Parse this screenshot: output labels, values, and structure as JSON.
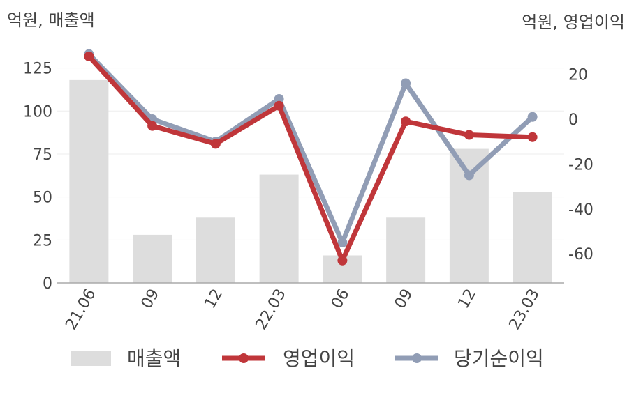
{
  "chart_data": {
    "type": "bar+line",
    "left_axis_label": "억원, 매출액",
    "right_axis_label": "억원, 영업이익",
    "categories": [
      "21.06",
      "09",
      "12",
      "22.03",
      "06",
      "09",
      "12",
      "23.03"
    ],
    "left_axis": {
      "ylim": [
        0,
        137
      ],
      "ticks": [
        0,
        25,
        50,
        75,
        100,
        125
      ]
    },
    "right_axis": {
      "ylim": [
        -73,
        32
      ],
      "ticks": [
        -60,
        -40,
        -20,
        0,
        20
      ]
    },
    "grid": true,
    "legend_position": "bottom",
    "series": [
      {
        "name": "매출액",
        "type": "bar",
        "axis": "left",
        "color": "#dddddd",
        "values": [
          118,
          28,
          38,
          63,
          16,
          38,
          78,
          53
        ]
      },
      {
        "name": "영업이익",
        "type": "line",
        "axis": "right",
        "color": "#c0363a",
        "values": [
          28,
          -3,
          -11,
          6,
          -63,
          -1,
          -7,
          -8
        ]
      },
      {
        "name": "당기순이익",
        "type": "line",
        "axis": "right",
        "color": "#919db5",
        "values": [
          29,
          0,
          -10,
          9,
          -55,
          16,
          -25,
          1
        ]
      }
    ]
  }
}
